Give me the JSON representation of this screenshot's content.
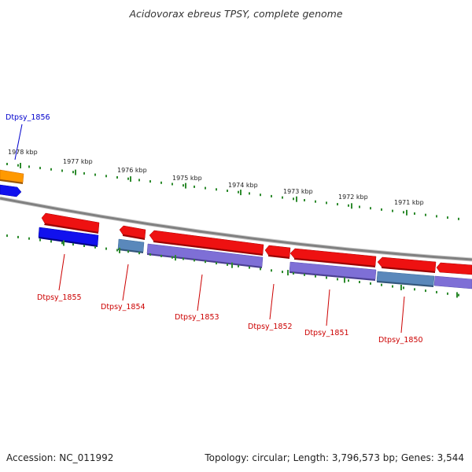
{
  "title": "Acidovorax ebreus TPSY, complete genome",
  "accession": "Accession: NC_011992",
  "summary": "Topology: circular; Length: 3,796,573 bp; Genes: 3,544",
  "colors": {
    "backbone": "#888888",
    "tick": "#2e8b2e",
    "forward_gene": "#ee1111",
    "reverse_gene": "#7e6fd6",
    "reverse_gene_alt": "#5a88bb",
    "highlight_reverse": "#1111ee",
    "highlight_forward": "#ff9900",
    "forward_label": "#cc0000",
    "highlight_label": "#0000cc"
  },
  "kbp_labels": [
    "1978 kbp",
    "1977 kbp",
    "1976 kbp",
    "1975 kbp",
    "1974 kbp",
    "1973 kbp",
    "1972 kbp",
    "1971 kbp"
  ],
  "gene_labels": [
    {
      "name": "Dtpsy_1856",
      "tone": "highlight"
    },
    {
      "name": "Dtpsy_1855",
      "tone": "normal"
    },
    {
      "name": "Dtpsy_1854",
      "tone": "normal"
    },
    {
      "name": "Dtpsy_1853",
      "tone": "normal"
    },
    {
      "name": "Dtpsy_1852",
      "tone": "normal"
    },
    {
      "name": "Dtpsy_1851",
      "tone": "normal"
    },
    {
      "name": "Dtpsy_1850",
      "tone": "normal"
    }
  ]
}
